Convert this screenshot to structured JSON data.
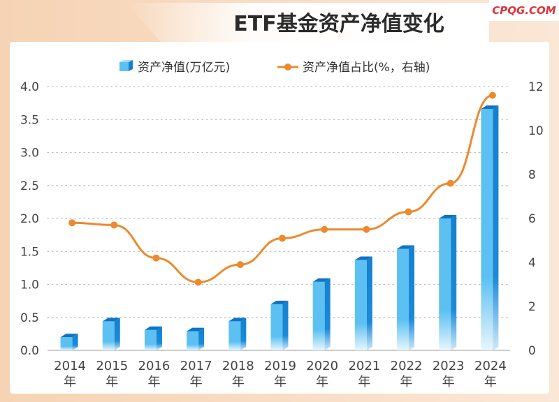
{
  "header": {
    "title": "ETF基金资产净值变化",
    "watermark": "CPQG.COM"
  },
  "legend": {
    "bar_label": "资产净值(万亿元)",
    "line_label": "资产净值占比(%，右轴)"
  },
  "colors": {
    "bar": "#1a8ad8",
    "bar_light": "#8fd0f5",
    "line": "#ec8a2e",
    "frame": "#f3c9a3",
    "grid": "#bdbdbd"
  },
  "chart_data": {
    "type": "bar",
    "title": "ETF基金资产净值变化",
    "categories": [
      [
        "2014",
        "年"
      ],
      [
        "2015",
        "年"
      ],
      [
        "2016",
        "年"
      ],
      [
        "2017",
        "年"
      ],
      [
        "2018",
        "年"
      ],
      [
        "2019",
        "年"
      ],
      [
        "2020",
        "年"
      ],
      [
        "2021",
        "年"
      ],
      [
        "2022",
        "年"
      ],
      [
        "2023",
        "年"
      ],
      [
        "2024",
        "年"
      ]
    ],
    "series": [
      {
        "name": "资产净值(万亿元)",
        "type": "bar",
        "axis": "left",
        "values": [
          0.2,
          0.44,
          0.31,
          0.29,
          0.44,
          0.7,
          1.04,
          1.37,
          1.54,
          2.0,
          3.66
        ]
      },
      {
        "name": "资产净值占比(%，右轴)",
        "type": "line",
        "axis": "right",
        "values": [
          5.8,
          5.7,
          4.2,
          3.1,
          3.9,
          5.1,
          5.5,
          5.5,
          6.3,
          7.6,
          11.6
        ]
      }
    ],
    "y_left": {
      "ticks": [
        "0.0",
        "0.5",
        "1.0",
        "1.5",
        "2.0",
        "2.5",
        "3.0",
        "3.5",
        "4.0"
      ],
      "ylim": [
        0,
        4
      ]
    },
    "y_right": {
      "ticks": [
        "0",
        "2",
        "4",
        "6",
        "8",
        "10",
        "12"
      ],
      "ylim": [
        0,
        12
      ]
    },
    "grid": true,
    "legend_position": "top"
  }
}
